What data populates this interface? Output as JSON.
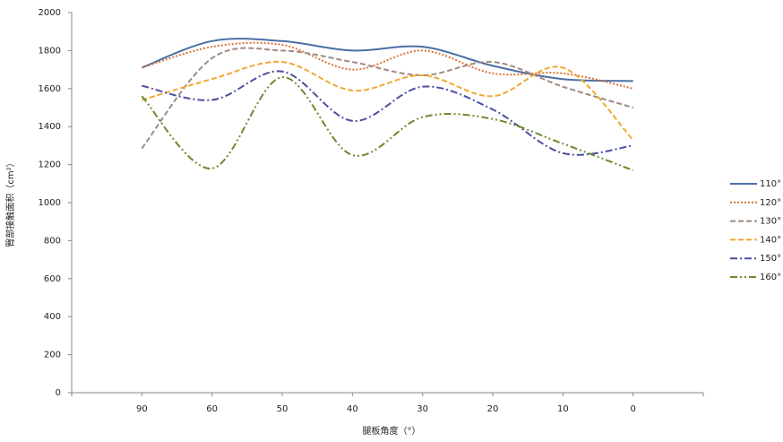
{
  "chart_data": {
    "type": "line",
    "x_label": "腿板角度（°）",
    "y_label": "臀部接触面积（cm²）",
    "categories": [
      "90",
      "60",
      "50",
      "40",
      "30",
      "20",
      "10",
      "0"
    ],
    "ylim": [
      0,
      2000
    ],
    "yticks": [
      0,
      200,
      400,
      600,
      800,
      1000,
      1200,
      1400,
      1600,
      1800,
      2000
    ],
    "legend": "right",
    "series": [
      {
        "name": "110°",
        "color": "#4a6fa5",
        "line_style": "solid",
        "values": [
          1710,
          1850,
          1850,
          1800,
          1820,
          1720,
          1650,
          1640
        ]
      },
      {
        "name": "120°",
        "color": "#d9733a",
        "line_style": "dotted",
        "values": [
          1710,
          1820,
          1830,
          1700,
          1800,
          1680,
          1680,
          1600
        ]
      },
      {
        "name": "130°",
        "color": "#a08a80",
        "line_style": "dashed",
        "values": [
          1285,
          1760,
          1800,
          1740,
          1670,
          1740,
          1610,
          1500
        ]
      },
      {
        "name": "140°",
        "color": "#f0a830",
        "line_style": "dashed",
        "values": [
          1540,
          1650,
          1740,
          1590,
          1670,
          1560,
          1710,
          1330
        ]
      },
      {
        "name": "150°",
        "color": "#4b4fa0",
        "line_style": "dash-dot",
        "values": [
          1615,
          1540,
          1690,
          1430,
          1610,
          1490,
          1260,
          1300
        ]
      },
      {
        "name": "160°",
        "color": "#6b8a2e",
        "line_style": "dash-dot-dot",
        "values": [
          1560,
          1180,
          1660,
          1250,
          1450,
          1440,
          1310,
          1170
        ]
      }
    ]
  }
}
